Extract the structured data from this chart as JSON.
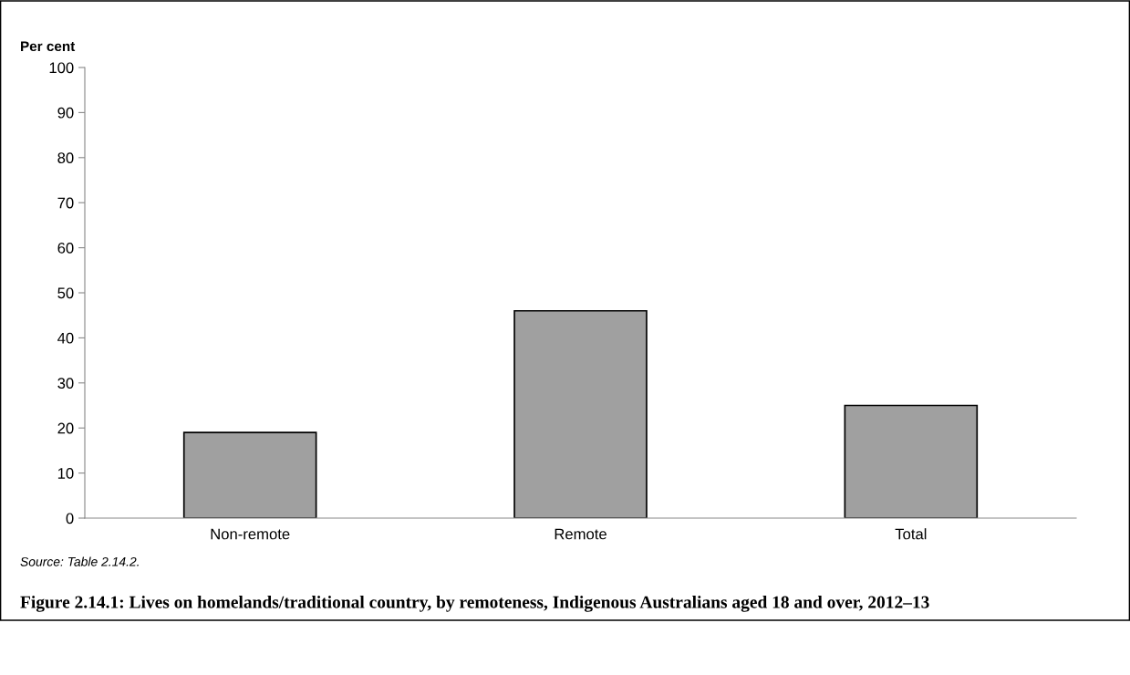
{
  "chart_data": {
    "type": "bar",
    "title": "Figure 2.14.1: Lives on homelands/traditional country, by remoteness, Indigenous Australians aged 18 and over, 2012–13",
    "ylabel": "Per cent",
    "categories": [
      "Non-remote",
      "Remote",
      "Total"
    ],
    "values": [
      19,
      46,
      25
    ],
    "color": "#a0a0a0",
    "ylim": [
      0,
      100
    ],
    "yticks": [
      0,
      10,
      20,
      30,
      40,
      50,
      60,
      70,
      80,
      90,
      100
    ],
    "grid": false,
    "legend": false,
    "annotations": [
      "Source: Table 2.14.2."
    ]
  }
}
